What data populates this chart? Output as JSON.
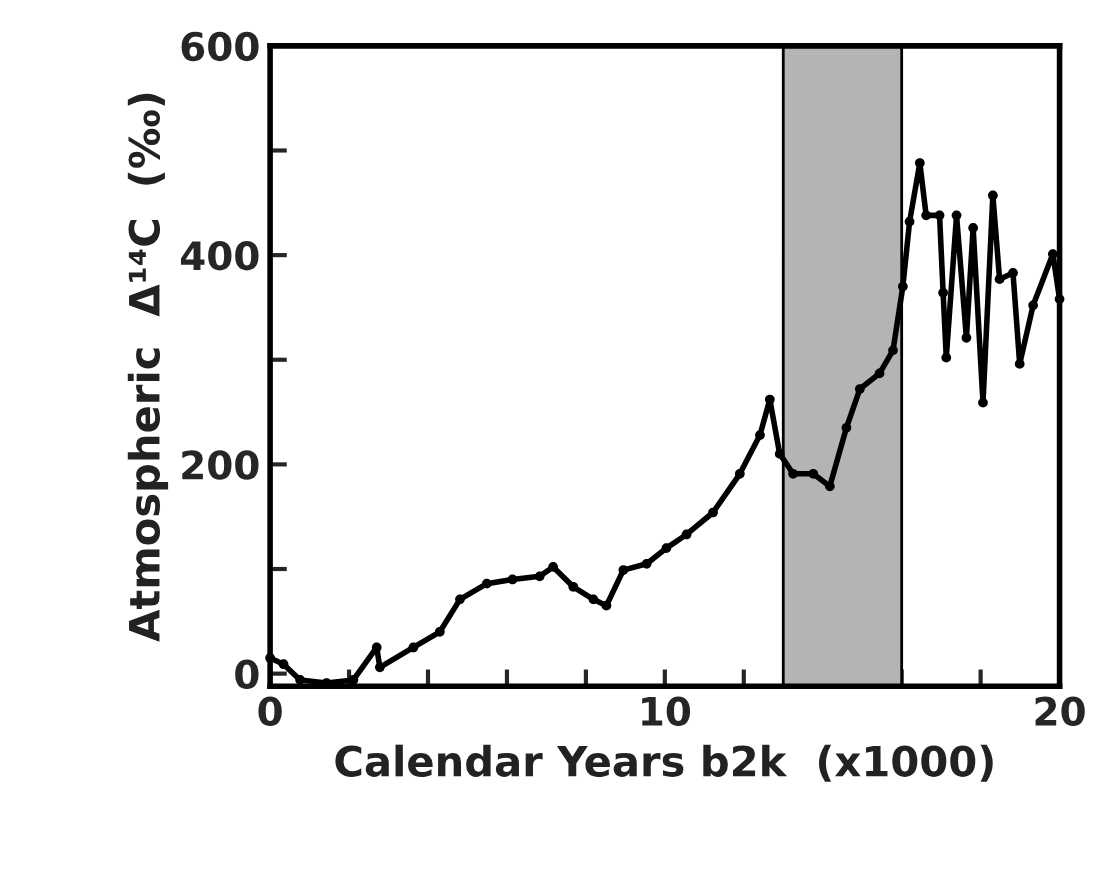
{
  "chart_data": {
    "type": "line",
    "xlabel": "Calendar Years b2k  (x1000)",
    "ylabel": "Atmospheric  Δ¹⁴C  (‰)",
    "xlim": [
      0,
      20
    ],
    "xticks": [
      0,
      {
        "value": 2,
        "label": null
      },
      {
        "value": 4,
        "label": null
      },
      {
        "value": 6,
        "label": null
      },
      {
        "value": 8,
        "label": null
      },
      10,
      {
        "value": 12,
        "label": null
      },
      {
        "value": 14,
        "label": null
      },
      {
        "value": 16,
        "label": null
      },
      {
        "value": 18,
        "label": null
      },
      20
    ],
    "ylim": [
      -12,
      600
    ],
    "yticks": [
      0,
      {
        "value": 100,
        "label": null
      },
      200,
      {
        "value": 300,
        "label": null
      },
      400,
      {
        "value": 500,
        "label": null
      },
      600
    ],
    "marker": "circle",
    "grid": false,
    "legend": false,
    "bands": [
      {
        "axis": "x",
        "from": 13,
        "to": 16,
        "color": "#b4b4b4"
      }
    ],
    "series": [
      {
        "color": "#000000",
        "x": [
          0,
          0.34,
          0.76,
          1.43,
          2.11,
          2.7,
          2.78,
          3.63,
          4.3,
          4.81,
          5.49,
          6.14,
          6.83,
          7.17,
          7.68,
          8.19,
          8.52,
          8.95,
          9.54,
          10.04,
          10.55,
          11.22,
          11.9,
          12.41,
          12.66,
          12.91,
          13.25,
          13.76,
          14.18,
          14.6,
          14.94,
          15.44,
          15.78,
          16.03,
          16.2,
          16.46,
          16.62,
          16.96,
          17.05,
          17.13,
          17.39,
          17.64,
          17.81,
          18.06,
          18.31,
          18.48,
          18.82,
          18.99,
          19.33,
          19.83,
          20.0
        ],
        "values": [
          15,
          9,
          -6,
          -9,
          -6,
          25,
          6,
          25,
          40,
          71,
          86,
          90,
          93,
          102,
          83,
          71,
          65,
          99,
          105,
          120,
          133,
          154,
          191,
          228,
          262,
          210,
          191,
          191,
          179,
          235,
          272,
          287,
          309,
          370,
          432,
          488,
          438,
          438,
          364,
          302,
          438,
          321,
          426,
          259,
          457,
          377,
          383,
          296,
          352,
          401,
          358
        ]
      }
    ]
  }
}
